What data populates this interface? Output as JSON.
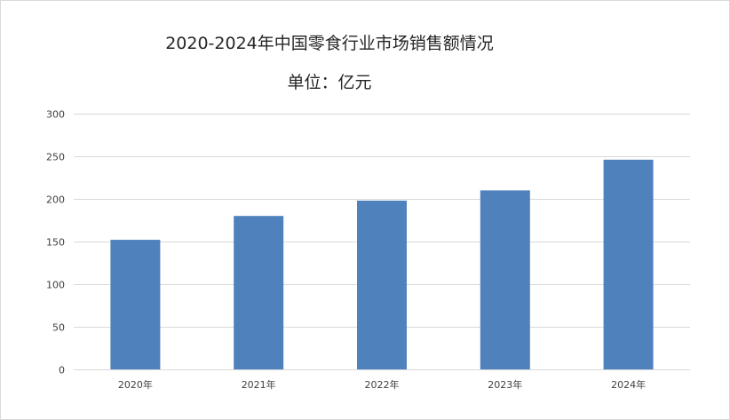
{
  "chart_data": {
    "type": "bar",
    "title": "2020-2024年中国零食行业市场销售额情况",
    "subtitle": "单位：亿元",
    "categories": [
      "2020年",
      "2021年",
      "2022年",
      "2023年",
      "2024年"
    ],
    "values": [
      152,
      180,
      198,
      210,
      246
    ],
    "ylim": [
      0,
      300
    ],
    "yticks": [
      0,
      50,
      100,
      150,
      200,
      250,
      300
    ],
    "grid": true,
    "legend": "none",
    "bar_color": "#4f81bd",
    "grid_color": "#d9d9d9"
  }
}
